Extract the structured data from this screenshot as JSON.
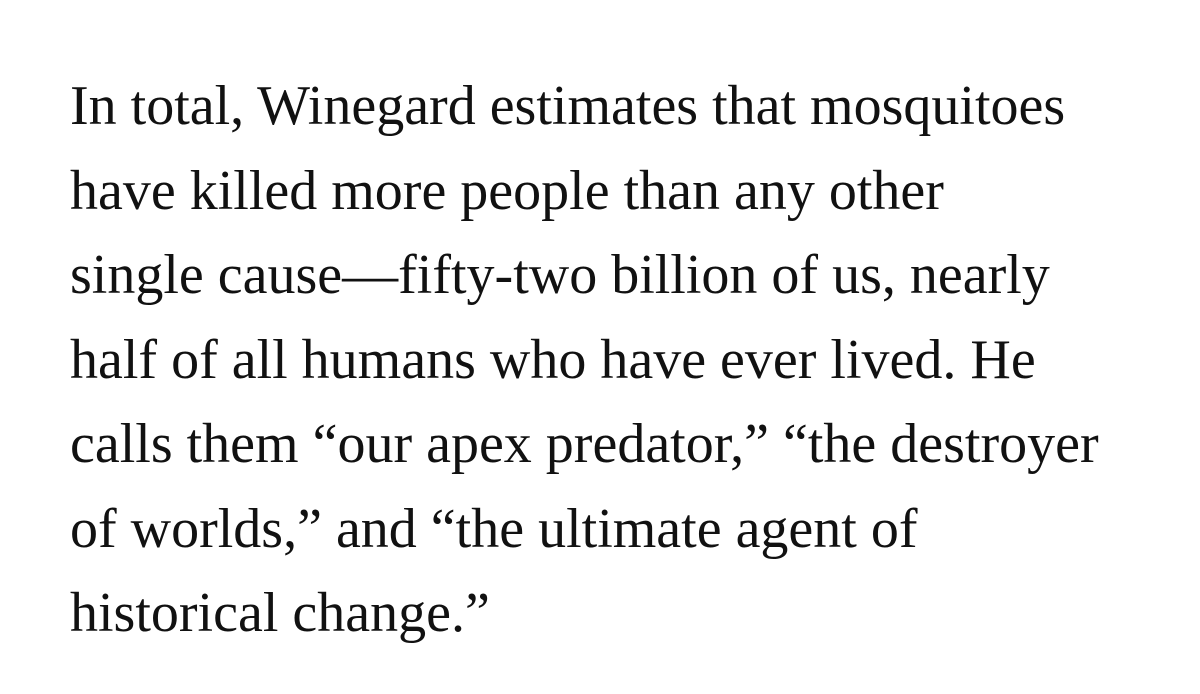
{
  "excerpt": {
    "lines": [
      "In total, Winegard estimates that mosquitoes",
      "have killed more people than any other",
      "single cause—fifty-two billion of us, nearly",
      "half of all humans who have ever lived. He",
      "calls them “our apex predator,” “the destroyer",
      "of worlds,” and “the ultimate agent of",
      "historical change.”"
    ]
  }
}
